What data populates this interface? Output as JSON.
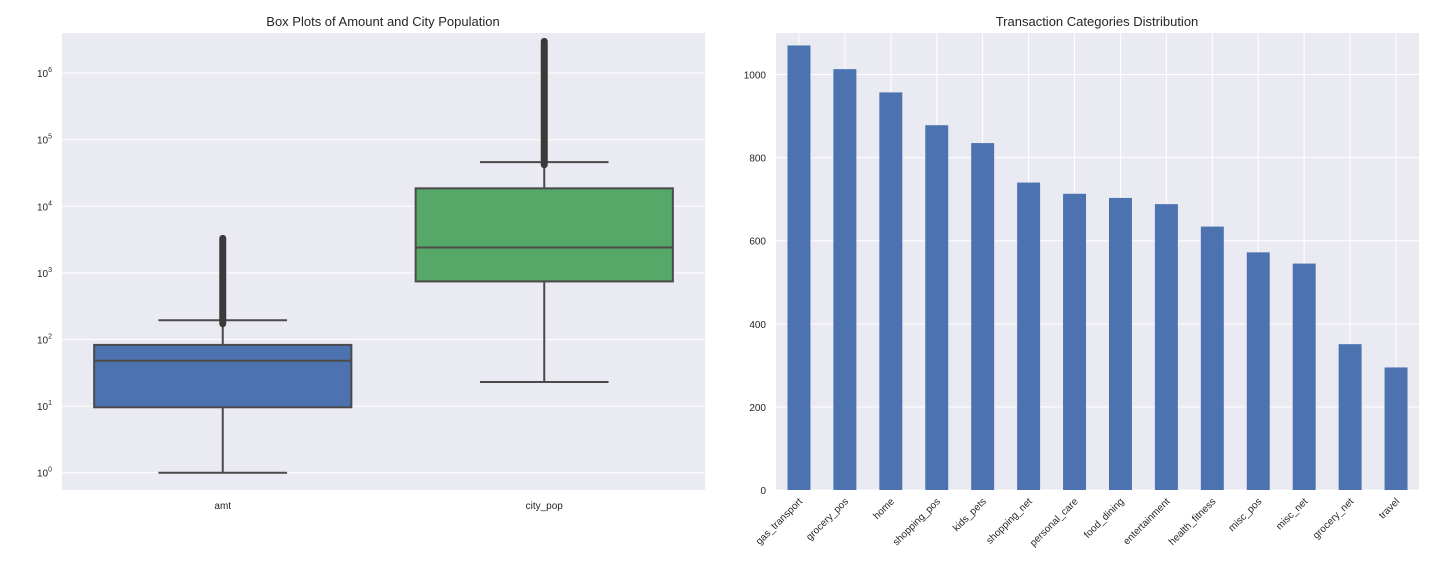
{
  "chart_data": [
    {
      "type": "box",
      "title": "Box Plots of Amount and City Population",
      "y_scale": "log",
      "ylim": [
        0.55,
        4000000
      ],
      "y_ticks": [
        {
          "base": "10",
          "exp": "0"
        },
        {
          "base": "10",
          "exp": "1"
        },
        {
          "base": "10",
          "exp": "2"
        },
        {
          "base": "10",
          "exp": "3"
        },
        {
          "base": "10",
          "exp": "4"
        },
        {
          "base": "10",
          "exp": "5"
        },
        {
          "base": "10",
          "exp": "6"
        }
      ],
      "series": [
        {
          "name": "amt",
          "color": "#4c72b0",
          "whisker_low": 1,
          "q1": 9.6,
          "median": 48,
          "q3": 83,
          "whisker_high": 195,
          "outlier_range": [
            172,
            3300
          ]
        },
        {
          "name": "city_pop",
          "color": "#55a868",
          "whisker_low": 23,
          "q1": 745,
          "median": 2410,
          "q3": 18600,
          "whisker_high": 46000,
          "outlier_range": [
            42000,
            3000000
          ]
        }
      ],
      "grid": true
    },
    {
      "type": "bar",
      "title": "Transaction Categories Distribution",
      "categories": [
        "gas_transport",
        "grocery_pos",
        "home",
        "shopping_pos",
        "kids_pets",
        "shopping_net",
        "personal_care",
        "food_dining",
        "entertainment",
        "health_fitness",
        "misc_pos",
        "misc_net",
        "grocery_net",
        "travel"
      ],
      "values": [
        1070,
        1013,
        957,
        878,
        835,
        740,
        713,
        703,
        688,
        634,
        572,
        545,
        351,
        295
      ],
      "ylim": [
        0,
        1100
      ],
      "y_ticks": [
        "0",
        "200",
        "400",
        "600",
        "800",
        "1000"
      ],
      "color": "#4c72b0",
      "grid": true
    }
  ]
}
